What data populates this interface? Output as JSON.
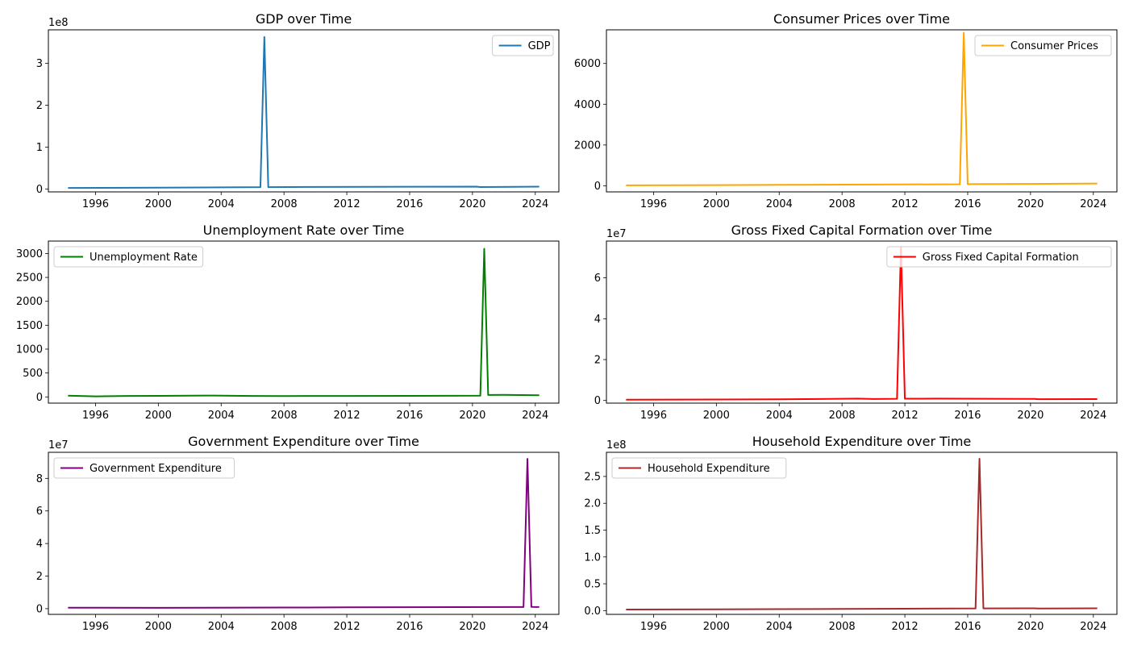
{
  "chart_data": [
    {
      "type": "line",
      "title": "GDP over Time",
      "xlabel": "",
      "ylabel": "",
      "xlim": [
        1993.0,
        2025.5
      ],
      "ylim": [
        -7000000,
        380000000
      ],
      "y_multiplier_label": "1e8",
      "y_ticks": [
        0,
        100000000,
        200000000,
        300000000
      ],
      "y_tick_labels": [
        "0",
        "1",
        "2",
        "3"
      ],
      "x_ticks": [
        1996,
        2000,
        2004,
        2008,
        2012,
        2016,
        2020,
        2024
      ],
      "x_tick_labels": [
        "1996",
        "2000",
        "2004",
        "2008",
        "2012",
        "2016",
        "2020",
        "2024"
      ],
      "legend": "top-right",
      "color": "#1f77b4",
      "series": [
        {
          "name": "GDP",
          "x": [
            1994.25,
            2000.0,
            2004.0,
            2006.5,
            2006.75,
            2007.0,
            2010.0,
            2016.0,
            2020.25,
            2020.5,
            2024.25
          ],
          "y": [
            2500000,
            3000000,
            3800000,
            4300000,
            363000000,
            4400000,
            4800000,
            5300000,
            5600000,
            4500000,
            5500000
          ]
        }
      ]
    },
    {
      "type": "line",
      "title": "Consumer Prices over Time",
      "xlabel": "",
      "ylabel": "",
      "xlim": [
        1993.0,
        2025.5
      ],
      "ylim": [
        -300,
        7650
      ],
      "y_multiplier_label": "",
      "y_ticks": [
        0,
        2000,
        4000,
        6000
      ],
      "y_tick_labels": [
        "0",
        "2000",
        "4000",
        "6000"
      ],
      "x_ticks": [
        1996,
        2000,
        2004,
        2008,
        2012,
        2016,
        2020,
        2024
      ],
      "x_tick_labels": [
        "1996",
        "2000",
        "2004",
        "2008",
        "2012",
        "2016",
        "2020",
        "2024"
      ],
      "legend": "top-right",
      "color": "#ffa500",
      "series": [
        {
          "name": "Consumer Prices",
          "x": [
            1994.25,
            2000.0,
            2004.0,
            2010.0,
            2015.5,
            2015.75,
            2016.0,
            2020.0,
            2024.25
          ],
          "y": [
            20,
            30,
            45,
            60,
            75,
            7500,
            80,
            90,
            110
          ]
        }
      ]
    },
    {
      "type": "line",
      "title": "Unemployment Rate over Time",
      "xlabel": "",
      "ylabel": "",
      "xlim": [
        1993.0,
        2025.5
      ],
      "ylim": [
        -130,
        3260
      ],
      "y_multiplier_label": "",
      "y_ticks": [
        0,
        500,
        1000,
        1500,
        2000,
        2500,
        3000
      ],
      "y_tick_labels": [
        "0",
        "500",
        "1000",
        "1500",
        "2000",
        "2500",
        "3000"
      ],
      "x_ticks": [
        1996,
        2000,
        2004,
        2008,
        2012,
        2016,
        2020,
        2024
      ],
      "x_tick_labels": [
        "1996",
        "2000",
        "2004",
        "2008",
        "2012",
        "2016",
        "2020",
        "2024"
      ],
      "legend": "top-left",
      "color": "#008000",
      "series": [
        {
          "name": "Unemployment Rate",
          "x": [
            1994.25,
            1996.0,
            1998.0,
            2000.0,
            2003.5,
            2006.0,
            2008.0,
            2012.0,
            2016.0,
            2020.5,
            2020.75,
            2021.0,
            2022.0,
            2024.25
          ],
          "y": [
            25,
            12,
            20,
            22,
            28,
            20,
            18,
            20,
            22,
            25,
            3100,
            40,
            42,
            35
          ]
        }
      ]
    },
    {
      "type": "line",
      "title": "Gross Fixed Capital Formation over Time",
      "xlabel": "",
      "ylabel": "",
      "xlim": [
        1993.0,
        2025.5
      ],
      "ylim": [
        -1300000,
        78000000
      ],
      "y_multiplier_label": "1e7",
      "y_ticks": [
        0,
        20000000,
        40000000,
        60000000
      ],
      "y_tick_labels": [
        "0",
        "2",
        "4",
        "6"
      ],
      "x_ticks": [
        1996,
        2000,
        2004,
        2008,
        2012,
        2016,
        2020,
        2024
      ],
      "x_tick_labels": [
        "1996",
        "2000",
        "2004",
        "2008",
        "2012",
        "2016",
        "2020",
        "2024"
      ],
      "legend": "top-right",
      "color": "#ff0000",
      "series": [
        {
          "name": "Gross Fixed Capital Formation",
          "x": [
            1994.25,
            2000.0,
            2004.0,
            2009.0,
            2010.0,
            2011.5,
            2011.75,
            2012.0,
            2014.0,
            2020.25,
            2020.5,
            2024.25
          ],
          "y": [
            400000,
            450000,
            550000,
            900000,
            700000,
            800000,
            75000000,
            850000,
            900000,
            750000,
            600000,
            650000
          ]
        }
      ]
    },
    {
      "type": "line",
      "title": "Government Expenditure over Time",
      "xlabel": "",
      "ylabel": "",
      "xlim": [
        1993.0,
        2025.5
      ],
      "ylim": [
        -3500000,
        96000000
      ],
      "y_multiplier_label": "1e7",
      "y_ticks": [
        0,
        20000000,
        40000000,
        60000000,
        80000000
      ],
      "y_tick_labels": [
        "0",
        "2",
        "4",
        "6",
        "8"
      ],
      "x_ticks": [
        1996,
        2000,
        2004,
        2008,
        2012,
        2016,
        2020,
        2024
      ],
      "x_tick_labels": [
        "1996",
        "2000",
        "2004",
        "2008",
        "2012",
        "2016",
        "2020",
        "2024"
      ],
      "legend": "top-left",
      "color": "#800080",
      "series": [
        {
          "name": "Government Expenditure",
          "x": [
            1994.25,
            2000.0,
            2008.0,
            2012.0,
            2016.0,
            2023.25,
            2023.5,
            2023.75,
            2024.25
          ],
          "y": [
            600000,
            500000,
            700000,
            800000,
            900000,
            1000000,
            92000000,
            1100000,
            1000000
          ]
        }
      ]
    },
    {
      "type": "line",
      "title": "Household Expenditure over Time",
      "xlabel": "",
      "ylabel": "",
      "xlim": [
        1993.0,
        2025.5
      ],
      "ylim": [
        -7000000,
        295000000
      ],
      "y_multiplier_label": "1e8",
      "y_ticks": [
        0,
        50000000,
        100000000,
        150000000,
        200000000,
        250000000
      ],
      "y_tick_labels": [
        "0.0",
        "0.5",
        "1.0",
        "1.5",
        "2.0",
        "2.5"
      ],
      "x_ticks": [
        1996,
        2000,
        2004,
        2008,
        2012,
        2016,
        2020,
        2024
      ],
      "x_tick_labels": [
        "1996",
        "2000",
        "2004",
        "2008",
        "2012",
        "2016",
        "2020",
        "2024"
      ],
      "legend": "top-left",
      "color": "#a52a2a",
      "series": [
        {
          "name": "Household Expenditure",
          "x": [
            1994.25,
            2000.0,
            2004.0,
            2008.0,
            2012.0,
            2016.5,
            2016.75,
            2017.0,
            2020.25,
            2020.5,
            2024.25
          ],
          "y": [
            2000000,
            2300000,
            2700000,
            3200000,
            3600000,
            4000000,
            283000000,
            4100000,
            4300000,
            3900000,
            4200000
          ]
        }
      ]
    }
  ]
}
